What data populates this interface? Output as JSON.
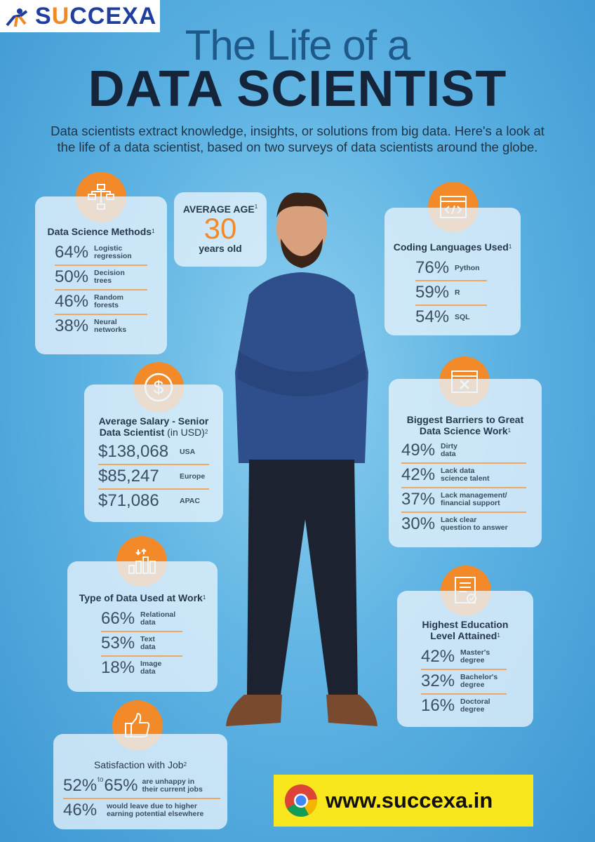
{
  "logo": {
    "text_prefix": "S",
    "text_u": "U",
    "text_rest": "CCEXA"
  },
  "title": {
    "line1": "The Life of a",
    "line2": "DATA SCIENTIST"
  },
  "intro": "Data scientists extract knowledge, insights, or solutions from big data. Here's a look at the life of a data scientist, based on two surveys of data scientists around the globe.",
  "average_age": {
    "title": "AVERAGE AGE",
    "sup": "1",
    "value": "30",
    "unit": "years old"
  },
  "methods": {
    "title": "Data Science Methods",
    "sup": "1",
    "items": [
      {
        "pct": "64%",
        "label": "Logistic\nregression"
      },
      {
        "pct": "50%",
        "label": "Decision\ntrees"
      },
      {
        "pct": "46%",
        "label": "Random\nforests"
      },
      {
        "pct": "38%",
        "label": "Neural\nnetworks"
      }
    ]
  },
  "coding": {
    "title": "Coding Languages Used",
    "sup": "1",
    "items": [
      {
        "pct": "76%",
        "label": "Python"
      },
      {
        "pct": "59%",
        "label": "R"
      },
      {
        "pct": "54%",
        "label": "SQL"
      }
    ]
  },
  "salary": {
    "title_line1": "Average Salary - Senior",
    "title_line2": "Data Scientist",
    "title_light": "(in USD)",
    "sup": "2",
    "items": [
      {
        "value": "$138,068",
        "label": "USA"
      },
      {
        "value": "$85,247",
        "label": "Europe"
      },
      {
        "value": "$71,086",
        "label": "APAC"
      }
    ]
  },
  "barriers": {
    "title_line1": "Biggest Barriers to Great",
    "title_line2": "Data Science Work",
    "sup": "1",
    "items": [
      {
        "pct": "49%",
        "label": "Dirty\ndata"
      },
      {
        "pct": "42%",
        "label": "Lack data\nscience talent"
      },
      {
        "pct": "37%",
        "label": "Lack management/\nfinancial support"
      },
      {
        "pct": "30%",
        "label": "Lack clear\nquestion to answer"
      }
    ]
  },
  "data_types": {
    "title": "Type of Data Used at Work",
    "sup": "1",
    "items": [
      {
        "pct": "66%",
        "label": "Relational\ndata"
      },
      {
        "pct": "53%",
        "label": "Text\ndata"
      },
      {
        "pct": "18%",
        "label": "Image\ndata"
      }
    ]
  },
  "education": {
    "title_line1": "Highest Education",
    "title_line2": "Level Attained",
    "sup": "1",
    "items": [
      {
        "pct": "42%",
        "label": "Master's\ndegree"
      },
      {
        "pct": "32%",
        "label": "Bachelor's\ndegree"
      },
      {
        "pct": "16%",
        "label": "Doctoral\ndegree"
      }
    ]
  },
  "satisfaction": {
    "title": "Satisfaction with Job",
    "sup": "2",
    "row1_a": "52%",
    "row1_to": "to",
    "row1_b": "65%",
    "row1_label": "are unhappy in\ntheir current jobs",
    "row2_pct": "46%",
    "row2_label": "would leave due to higher\nearning potential elsewhere"
  },
  "banner": {
    "url": "www.succexa.in"
  },
  "colors": {
    "accent": "#f28a2a",
    "brand": "#1f3e9e",
    "banner": "#f8e71c"
  },
  "icons": [
    "flowchart-icon",
    "code-window-icon",
    "dollar-icon",
    "error-window-icon",
    "bar-chart-icon",
    "certificate-icon",
    "thumbs-up-icon",
    "chrome-icon"
  ]
}
